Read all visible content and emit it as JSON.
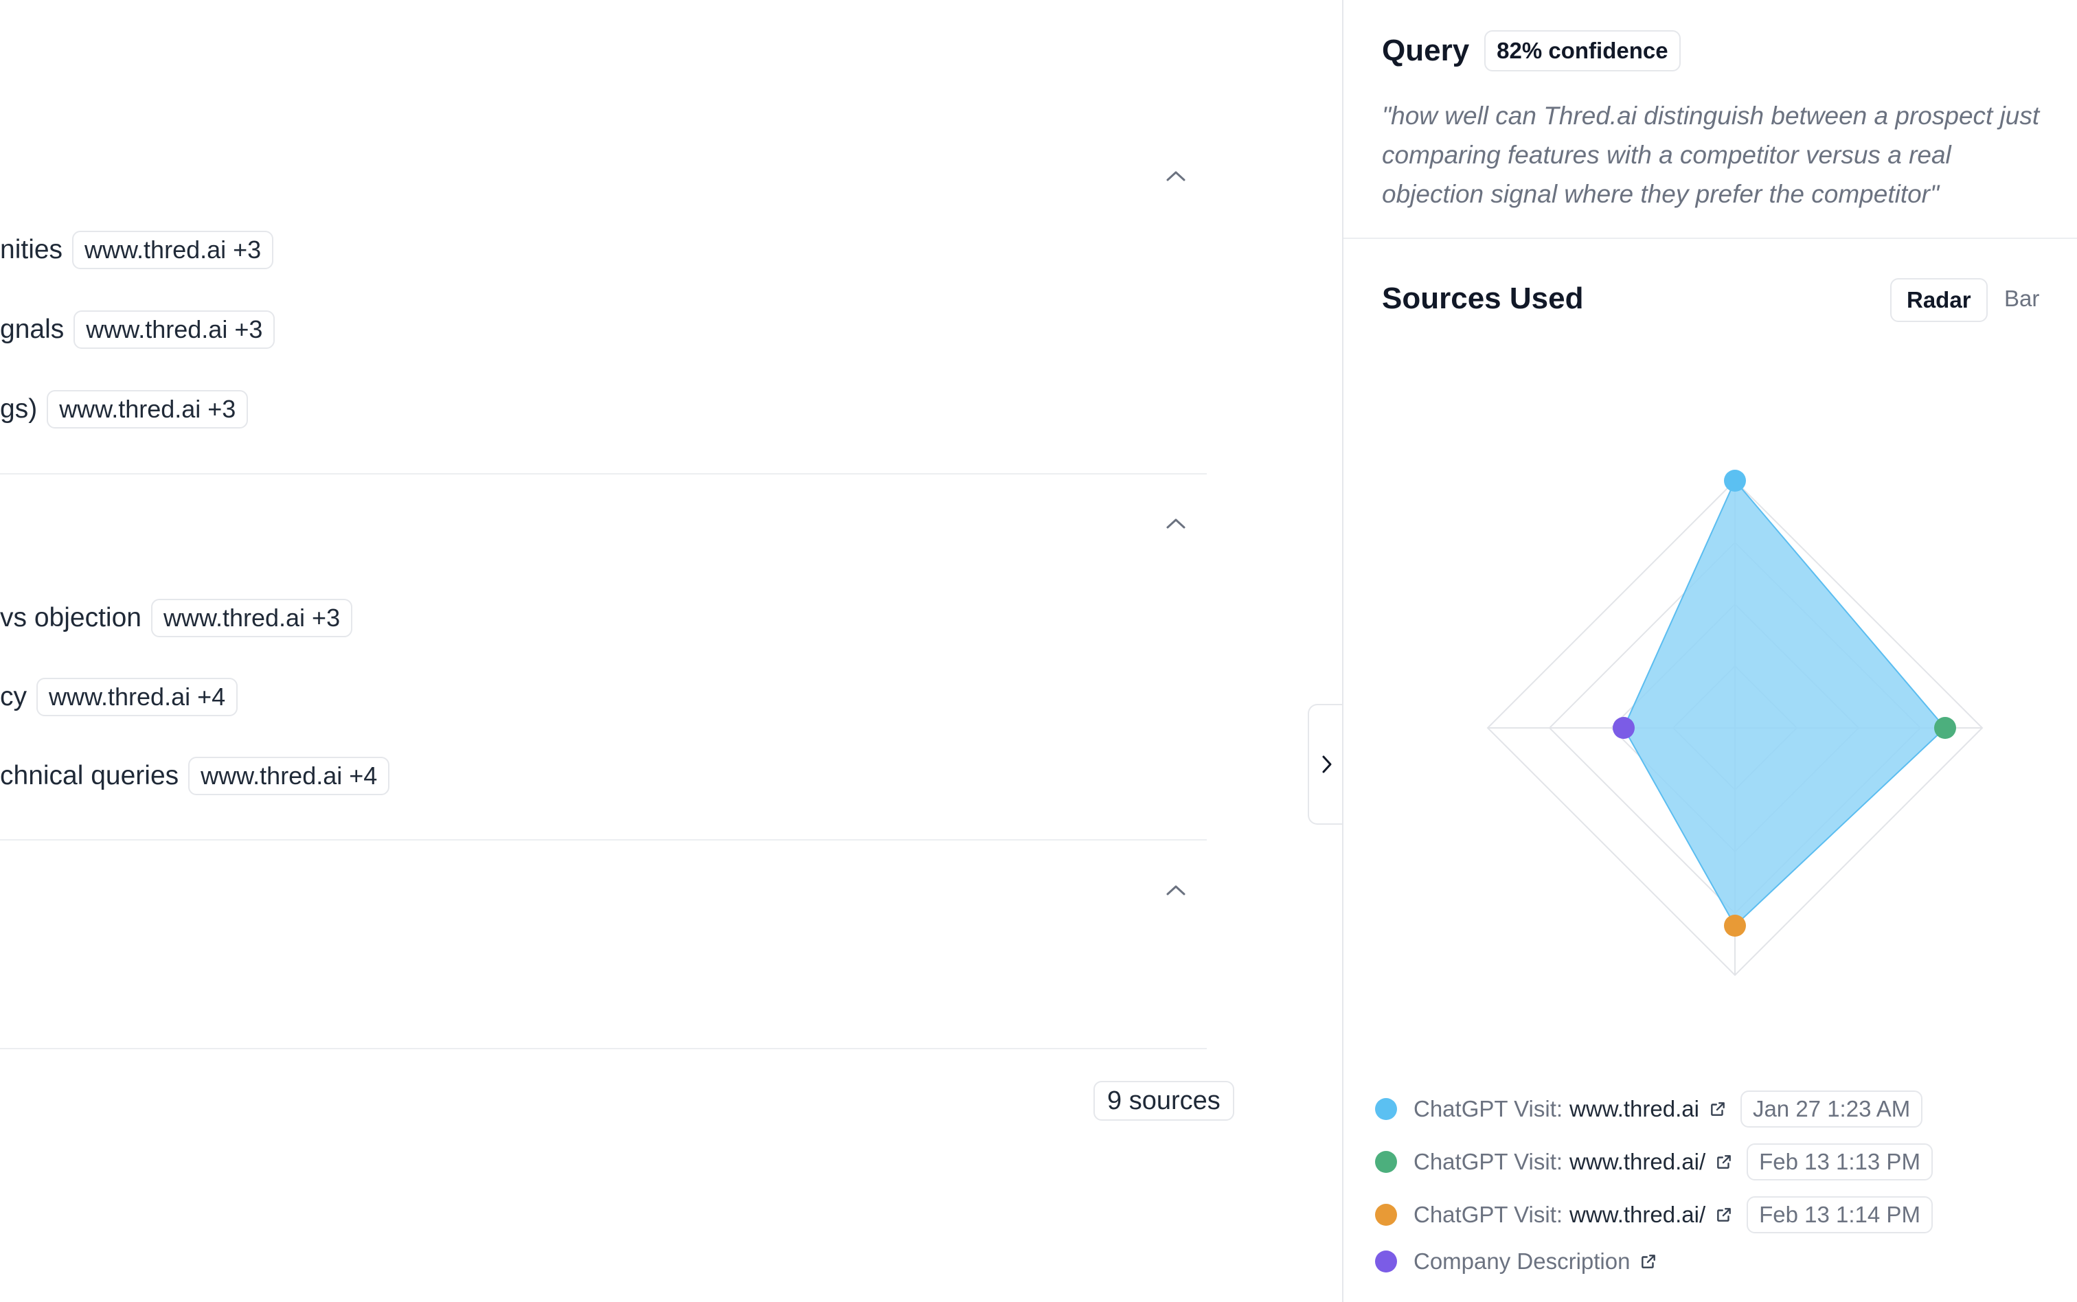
{
  "left": {
    "sections": [
      {
        "rows": [
          {
            "label": "nities",
            "source": "www.thred.ai +3"
          },
          {
            "label": "gnals",
            "source": "www.thred.ai +3"
          },
          {
            "label": "gs)",
            "source": "www.thred.ai +3"
          }
        ]
      },
      {
        "rows": [
          {
            "label": "vs objection",
            "source": "www.thred.ai +3"
          },
          {
            "label": "cy",
            "source": "www.thred.ai +4"
          },
          {
            "label": "chnical queries",
            "source": "www.thred.ai +4"
          }
        ]
      },
      {
        "rows": []
      }
    ],
    "sources_count": "9 sources"
  },
  "query": {
    "title": "Query",
    "confidence": "82% confidence",
    "text": "\"how well can Thred.ai distinguish between a prospect just comparing features with a competitor versus a real objection signal where they prefer the competitor\""
  },
  "sources_used": {
    "title": "Sources Used",
    "toggle_radar": "Radar",
    "toggle_bar": "Bar"
  },
  "chart_data": {
    "type": "radar",
    "axes": [
      "ChatGPT Visit: www.thred.ai",
      "ChatGPT Visit: www.thred.ai/",
      "ChatGPT Visit: www.thred.ai/",
      "Company Description"
    ],
    "values": [
      1.0,
      0.85,
      0.8,
      0.45
    ],
    "rmax": 1.0,
    "rings": 4,
    "fill_color": "#90d5f7",
    "stroke_color": "#5bbdf0",
    "point_colors": [
      "#5bc0f2",
      "#4caf7d",
      "#e89a36",
      "#7b5ce6"
    ]
  },
  "legend": [
    {
      "prefix": "ChatGPT Visit:",
      "domain": "www.thred.ai",
      "date": "Jan 27 1:23 AM",
      "color": "#5bc0f2"
    },
    {
      "prefix": "ChatGPT Visit:",
      "domain": "www.thred.ai/",
      "date": "Feb 13 1:13 PM",
      "color": "#4caf7d"
    },
    {
      "prefix": "ChatGPT Visit:",
      "domain": "www.thred.ai/",
      "date": "Feb 13 1:14 PM",
      "color": "#e89a36"
    },
    {
      "prefix": "Company Description",
      "domain": "",
      "date": "",
      "color": "#7b5ce6"
    }
  ],
  "icons": {
    "collapse": "chevron-up-icon",
    "panel_toggle": "chevron-right-icon",
    "external": "external-link-icon"
  }
}
